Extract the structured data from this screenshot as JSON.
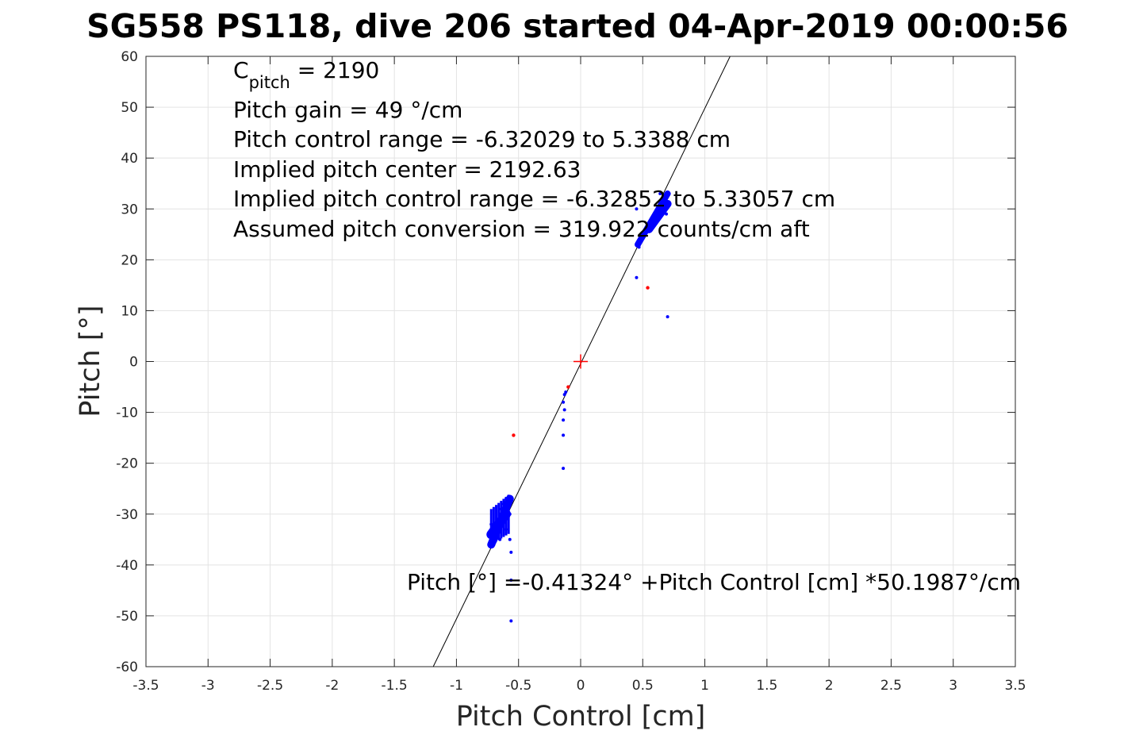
{
  "chart_data": {
    "type": "scatter",
    "title": "SG558 PS118, dive 206 started 04-Apr-2019 00:00:56",
    "xlabel": "Pitch Control [cm]",
    "ylabel": "Pitch [°]",
    "xlim": [
      -3.5,
      3.5
    ],
    "ylim": [
      -60,
      60
    ],
    "xticks": [
      -3.5,
      -3,
      -2.5,
      -2,
      -1.5,
      -1,
      -0.5,
      0,
      0.5,
      1,
      1.5,
      2,
      2.5,
      3,
      3.5
    ],
    "xtick_labels": [
      "-3.5",
      "-3",
      "-2.5",
      "-2",
      "-1.5",
      "-1",
      "-0.5",
      "0",
      "0.5",
      "1",
      "1.5",
      "2",
      "2.5",
      "3",
      "3.5"
    ],
    "yticks": [
      -60,
      -50,
      -40,
      -30,
      -20,
      -10,
      0,
      10,
      20,
      30,
      40,
      50,
      60
    ],
    "ytick_labels": [
      "-60",
      "-50",
      "-40",
      "-30",
      "-20",
      "-10",
      "0",
      "10",
      "20",
      "30",
      "40",
      "50",
      "60"
    ],
    "grid": true,
    "annotations": {
      "c_pitch_main": "C",
      "c_pitch_sub": "pitch",
      "c_pitch_value": " = 2190",
      "pitch_gain": "Pitch gain = 49 °/cm",
      "control_range": "Pitch control range = -6.32029 to 5.3388 cm",
      "implied_center": "Implied pitch center = 2192.63",
      "implied_range": "Implied pitch control range = -6.32852 to 5.33057 cm",
      "conversion": "Assumed pitch conversion = 319.922 counts/cm aft",
      "fit_equation": "Pitch [°] =-0.41324° +Pitch Control [cm] *50.1987°/cm"
    },
    "fit_line": {
      "intercept": -0.41324,
      "slope": 50.1987
    },
    "center_marker": {
      "x": 0,
      "y": 0
    },
    "colors": {
      "good_points": "#0000ff",
      "bad_points": "#ff0000",
      "fit_line": "#000000",
      "center_marker": "#ff0000"
    },
    "bad_points": [
      {
        "x": -0.54,
        "y": -14.5
      },
      {
        "x": 0.54,
        "y": 14.5
      },
      {
        "x": -0.1,
        "y": -5
      }
    ],
    "good_points": [
      {
        "x": 0.45,
        "y": 16.5
      },
      {
        "x": 0.7,
        "y": 8.8
      },
      {
        "x": 0.45,
        "y": 30
      },
      {
        "x": 0.47,
        "y": 22.5
      },
      {
        "x": 0.5,
        "y": 24.5
      },
      {
        "x": 0.52,
        "y": 26
      },
      {
        "x": 0.55,
        "y": 27
      },
      {
        "x": 0.58,
        "y": 28
      },
      {
        "x": 0.6,
        "y": 29
      },
      {
        "x": 0.62,
        "y": 30
      },
      {
        "x": 0.65,
        "y": 31
      },
      {
        "x": 0.68,
        "y": 32
      },
      {
        "x": 0.7,
        "y": 33
      },
      {
        "x": 0.69,
        "y": 29
      },
      {
        "x": 0.64,
        "y": 33
      },
      {
        "x": -0.13,
        "y": -6.5
      },
      {
        "x": -0.14,
        "y": -8
      },
      {
        "x": -0.13,
        "y": -9.5
      },
      {
        "x": -0.14,
        "y": -11.5
      },
      {
        "x": -0.14,
        "y": -14.5
      },
      {
        "x": -0.14,
        "y": -21
      },
      {
        "x": -0.12,
        "y": -6
      },
      {
        "x": -0.56,
        "y": -51
      },
      {
        "x": -0.56,
        "y": -37.5
      },
      {
        "x": -0.57,
        "y": -35
      },
      {
        "x": -0.56,
        "y": -43
      },
      {
        "x": -0.72,
        "y": -32
      },
      {
        "x": -0.7,
        "y": -36
      },
      {
        "x": -0.68,
        "y": -34
      },
      {
        "x": -0.66,
        "y": -31
      },
      {
        "x": -0.64,
        "y": -29
      },
      {
        "x": -0.62,
        "y": -28
      },
      {
        "x": -0.6,
        "y": -27
      },
      {
        "x": -0.58,
        "y": -26.5
      },
      {
        "x": -0.6,
        "y": -33
      },
      {
        "x": -0.65,
        "y": -35
      },
      {
        "x": -0.63,
        "y": -32
      },
      {
        "x": -0.57,
        "y": -30
      },
      {
        "x": -0.7,
        "y": -33
      },
      {
        "x": -0.69,
        "y": -35.5
      },
      {
        "x": -0.61,
        "y": -31.5
      }
    ]
  }
}
